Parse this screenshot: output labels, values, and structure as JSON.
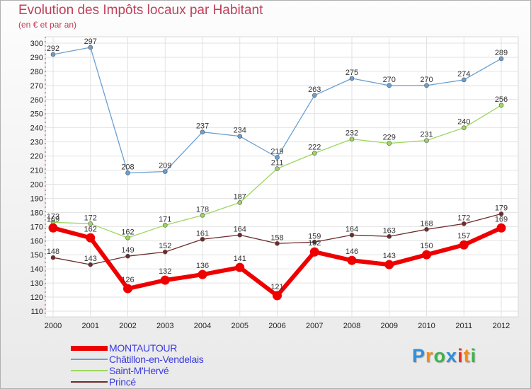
{
  "title": "Evolution des Impôts locaux par Habitant",
  "subtitle": "(en € et par an)",
  "logo": {
    "text": "Proxiti",
    "colors": [
      "#2f8fd8",
      "#f08c1c",
      "#3cb44b",
      "#2f8fd8",
      "#e8332a",
      "#f08c1c",
      "#3cb44b"
    ]
  },
  "chart_data": {
    "type": "line",
    "title": "Evolution des Impôts locaux par Habitant",
    "subtitle": "(en € et par an)",
    "x": [
      "2000",
      "2001",
      "2002",
      "2003",
      "2004",
      "2005",
      "2006",
      "2007",
      "2008",
      "2009",
      "2010",
      "2011",
      "2012"
    ],
    "ylim": [
      110,
      300
    ],
    "yticks": [
      "110",
      "120",
      "130",
      "140",
      "150",
      "160",
      "170",
      "180",
      "190",
      "200",
      "210",
      "220",
      "230",
      "240",
      "250",
      "260",
      "270",
      "280",
      "290",
      "300"
    ],
    "grid": true,
    "legend_position": "bottom-left",
    "series": [
      {
        "name": "MONTAUTOUR",
        "color": "#ee0000",
        "values": [
          169,
          162,
          126,
          132,
          136,
          141,
          121,
          152,
          146,
          143,
          150,
          157,
          169
        ]
      },
      {
        "name": "Châtillon-en-Vendelais",
        "color": "#6b9fd0",
        "values": [
          292,
          297,
          208,
          209,
          237,
          234,
          219,
          263,
          275,
          270,
          270,
          274,
          289
        ]
      },
      {
        "name": "Saint-M'Hervé",
        "color": "#9dd660",
        "values": [
          173,
          172,
          162,
          171,
          178,
          187,
          211,
          222,
          232,
          229,
          231,
          240,
          256
        ]
      },
      {
        "name": "Princé",
        "color": "#6e2b2b",
        "values": [
          148,
          143,
          149,
          152,
          161,
          164,
          158,
          159,
          164,
          163,
          168,
          172,
          179
        ]
      }
    ]
  }
}
